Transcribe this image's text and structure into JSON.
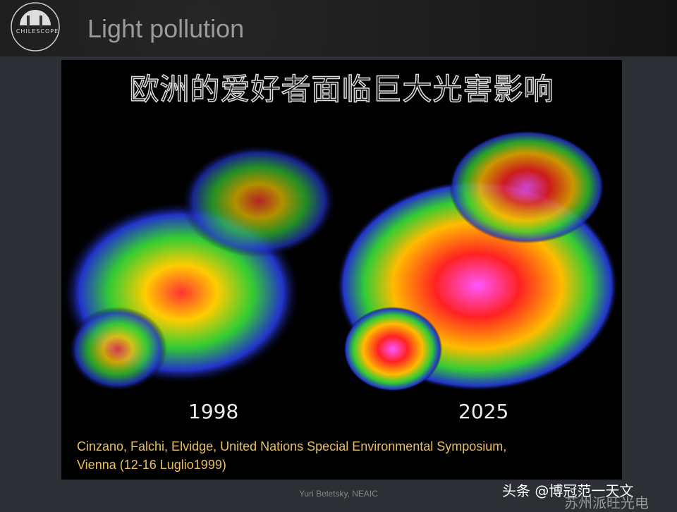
{
  "header": {
    "logo_text": "CHILESCOPE",
    "title": "Light pollution"
  },
  "slide": {
    "heading": "欧洲的爱好者面临巨大光害影响",
    "maps": [
      {
        "label": "1998"
      },
      {
        "label": "2025"
      }
    ],
    "citation": [
      "Cinzano, Falchi, Elvidge, United Nations Special Environmental Symposium,",
      "Vienna (12-16 Luglio1999)"
    ]
  },
  "footer": {
    "author": "Yuri Beletsky, NEAIC",
    "watermark": "头条 @博冠范一天文",
    "watermark2": "苏州派旺光电"
  }
}
